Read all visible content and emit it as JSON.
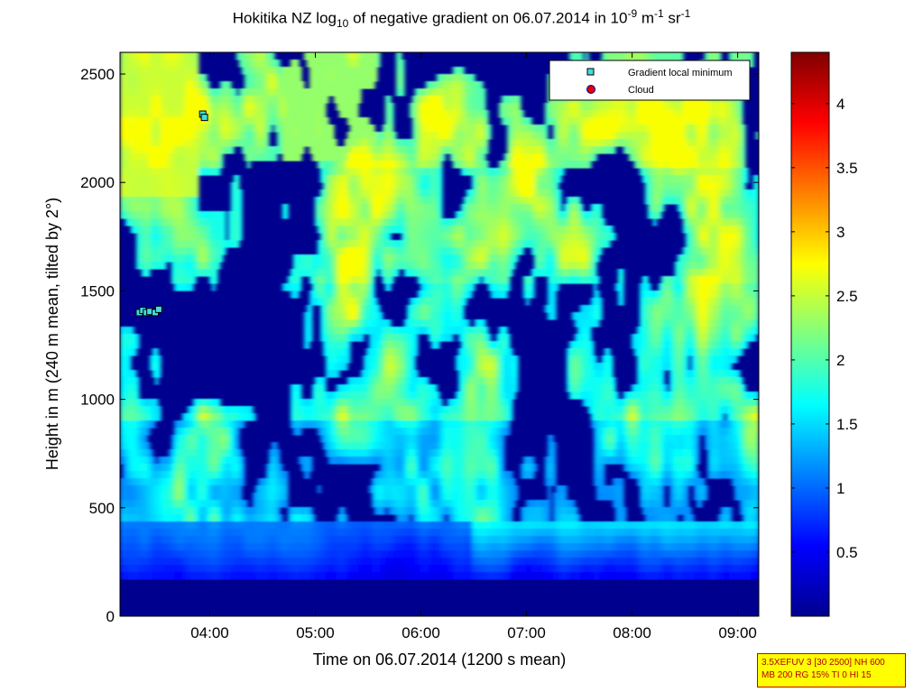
{
  "title": {
    "prefix": "Hokitika NZ log",
    "sub": "10",
    "middle": " of negative gradient on 06.07.2014 in 10",
    "sup1": "-9",
    "mid2": " m",
    "sup2": "-1",
    "mid3": " sr",
    "sup3": "-1"
  },
  "xlabel": "Time on 06.07.2014 (1200 s mean)",
  "ylabel": "Height in m (240 m mean, tilted by 2°)",
  "legend": {
    "entries": [
      {
        "label": "Gradient local minimum",
        "marker": "square",
        "color": "#44dddd"
      },
      {
        "label": "Cloud",
        "marker": "circle",
        "color": "#dd0000"
      }
    ]
  },
  "info_box": {
    "line1": "3.5XEFUV 3 [30 2500] NH 600",
    "line2": "MB 200 RG 15% TI 0 HI 15"
  },
  "colors": {
    "deep_blue": "#00008f",
    "colormap": "jet",
    "info_border": "#cc0000",
    "info_bg": "#ffff00"
  },
  "chart_data": {
    "type": "heatmap",
    "x_ticks": [
      "04:00",
      "05:00",
      "06:00",
      "07:00",
      "08:00",
      "09:00"
    ],
    "x_range": [
      "03:09",
      "09:12"
    ],
    "y_ticks": [
      "0",
      "500",
      "1000",
      "1500",
      "2000",
      "2500"
    ],
    "ylim": [
      0,
      2600
    ],
    "colorbar": {
      "ticks": [
        "0.5",
        "1",
        "1.5",
        "2",
        "2.5",
        "3",
        "3.5",
        "4"
      ],
      "range": [
        0,
        4.4
      ],
      "colormap": "jet"
    },
    "gradient_local_minimum_points": [
      {
        "time": "03:56",
        "height": 2315
      },
      {
        "time": "03:57",
        "height": 2300
      },
      {
        "time": "03:20",
        "height": 1400
      },
      {
        "time": "03:22",
        "height": 1410
      },
      {
        "time": "03:24",
        "height": 1400
      },
      {
        "time": "03:26",
        "height": 1405
      },
      {
        "time": "03:29",
        "height": 1400
      },
      {
        "time": "03:31",
        "height": 1415
      }
    ],
    "cloud_points": []
  }
}
